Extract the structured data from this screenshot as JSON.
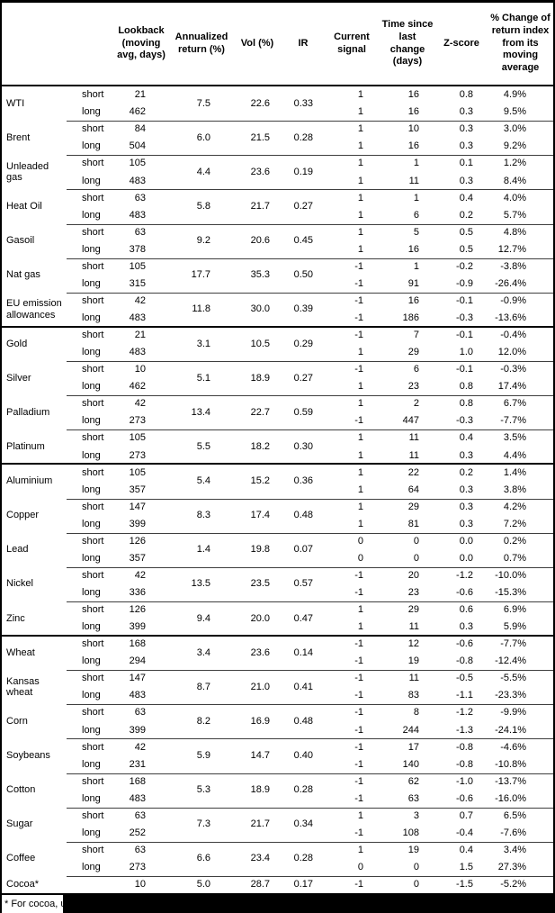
{
  "header": {
    "commodity": "",
    "position": "",
    "lookback": "Lookback (moving avg, days)",
    "annualized": "Annualized return (%)",
    "vol": "Vol (%)",
    "ir": "IR",
    "signal": "Current signal",
    "time": "Time since last change (days)",
    "zscore": "Z-score",
    "change": "% Change of return index from its moving average"
  },
  "sections": [
    {
      "name": "energy",
      "groups": [
        {
          "name": "WTI",
          "annualized": "7.5",
          "vol": "22.6",
          "ir": "0.33",
          "rows": [
            {
              "pos": "short",
              "lookback": "21",
              "signal": "1",
              "time": "16",
              "zscore": "0.8",
              "change": "4.9%"
            },
            {
              "pos": "long",
              "lookback": "462",
              "signal": "1",
              "time": "16",
              "zscore": "0.3",
              "change": "9.5%"
            }
          ]
        },
        {
          "name": "Brent",
          "annualized": "6.0",
          "vol": "21.5",
          "ir": "0.28",
          "rows": [
            {
              "pos": "short",
              "lookback": "84",
              "signal": "1",
              "time": "10",
              "zscore": "0.3",
              "change": "3.0%"
            },
            {
              "pos": "long",
              "lookback": "504",
              "signal": "1",
              "time": "16",
              "zscore": "0.3",
              "change": "9.2%"
            }
          ]
        },
        {
          "name": "Unleaded gas",
          "annualized": "4.4",
          "vol": "23.6",
          "ir": "0.19",
          "rows": [
            {
              "pos": "short",
              "lookback": "105",
              "signal": "1",
              "time": "1",
              "zscore": "0.1",
              "change": "1.2%"
            },
            {
              "pos": "long",
              "lookback": "483",
              "signal": "1",
              "time": "11",
              "zscore": "0.3",
              "change": "8.4%"
            }
          ]
        },
        {
          "name": "Heat Oil",
          "annualized": "5.8",
          "vol": "21.7",
          "ir": "0.27",
          "rows": [
            {
              "pos": "short",
              "lookback": "63",
              "signal": "1",
              "time": "1",
              "zscore": "0.4",
              "change": "4.0%"
            },
            {
              "pos": "long",
              "lookback": "483",
              "signal": "1",
              "time": "6",
              "zscore": "0.2",
              "change": "5.7%"
            }
          ]
        },
        {
          "name": "Gasoil",
          "annualized": "9.2",
          "vol": "20.6",
          "ir": "0.45",
          "rows": [
            {
              "pos": "short",
              "lookback": "63",
              "signal": "1",
              "time": "5",
              "zscore": "0.5",
              "change": "4.8%"
            },
            {
              "pos": "long",
              "lookback": "378",
              "signal": "1",
              "time": "16",
              "zscore": "0.5",
              "change": "12.7%"
            }
          ]
        },
        {
          "name": "Nat gas",
          "annualized": "17.7",
          "vol": "35.3",
          "ir": "0.50",
          "rows": [
            {
              "pos": "short",
              "lookback": "105",
              "signal": "-1",
              "time": "1",
              "zscore": "-0.2",
              "change": "-3.8%"
            },
            {
              "pos": "long",
              "lookback": "315",
              "signal": "-1",
              "time": "91",
              "zscore": "-0.9",
              "change": "-26.4%"
            }
          ]
        },
        {
          "name": "EU emission allowances",
          "annualized": "11.8",
          "vol": "30.0",
          "ir": "0.39",
          "rows": [
            {
              "pos": "short",
              "lookback": "42",
              "signal": "-1",
              "time": "16",
              "zscore": "-0.1",
              "change": "-0.9%"
            },
            {
              "pos": "long",
              "lookback": "483",
              "signal": "-1",
              "time": "186",
              "zscore": "-0.3",
              "change": "-13.6%"
            }
          ]
        }
      ]
    },
    {
      "name": "precious-metals",
      "groups": [
        {
          "name": "Gold",
          "annualized": "3.1",
          "vol": "10.5",
          "ir": "0.29",
          "rows": [
            {
              "pos": "short",
              "lookback": "21",
              "signal": "-1",
              "time": "7",
              "zscore": "-0.1",
              "change": "-0.4%"
            },
            {
              "pos": "long",
              "lookback": "483",
              "signal": "1",
              "time": "29",
              "zscore": "1.0",
              "change": "12.0%"
            }
          ]
        },
        {
          "name": "Silver",
          "annualized": "5.1",
          "vol": "18.9",
          "ir": "0.27",
          "rows": [
            {
              "pos": "short",
              "lookback": "10",
              "signal": "-1",
              "time": "6",
              "zscore": "-0.1",
              "change": "-0.3%"
            },
            {
              "pos": "long",
              "lookback": "462",
              "signal": "1",
              "time": "23",
              "zscore": "0.8",
              "change": "17.4%"
            }
          ]
        },
        {
          "name": "Palladium",
          "annualized": "13.4",
          "vol": "22.7",
          "ir": "0.59",
          "rows": [
            {
              "pos": "short",
              "lookback": "42",
              "signal": "1",
              "time": "2",
              "zscore": "0.8",
              "change": "6.7%"
            },
            {
              "pos": "long",
              "lookback": "273",
              "signal": "-1",
              "time": "447",
              "zscore": "-0.3",
              "change": "-7.7%"
            }
          ]
        },
        {
          "name": "Platinum",
          "annualized": "5.5",
          "vol": "18.2",
          "ir": "0.30",
          "rows": [
            {
              "pos": "short",
              "lookback": "105",
              "signal": "1",
              "time": "11",
              "zscore": "0.4",
              "change": "3.5%"
            },
            {
              "pos": "long",
              "lookback": "273",
              "signal": "1",
              "time": "11",
              "zscore": "0.3",
              "change": "4.4%"
            }
          ]
        }
      ]
    },
    {
      "name": "base-metals",
      "groups": [
        {
          "name": "Aluminium",
          "annualized": "5.4",
          "vol": "15.2",
          "ir": "0.36",
          "rows": [
            {
              "pos": "short",
              "lookback": "105",
              "signal": "1",
              "time": "22",
              "zscore": "0.2",
              "change": "1.4%"
            },
            {
              "pos": "long",
              "lookback": "357",
              "signal": "1",
              "time": "64",
              "zscore": "0.3",
              "change": "3.8%"
            }
          ]
        },
        {
          "name": "Copper",
          "annualized": "8.3",
          "vol": "17.4",
          "ir": "0.48",
          "rows": [
            {
              "pos": "short",
              "lookback": "147",
              "signal": "1",
              "time": "29",
              "zscore": "0.3",
              "change": "4.2%"
            },
            {
              "pos": "long",
              "lookback": "399",
              "signal": "1",
              "time": "81",
              "zscore": "0.3",
              "change": "7.2%"
            }
          ]
        },
        {
          "name": "Lead",
          "annualized": "1.4",
          "vol": "19.8",
          "ir": "0.07",
          "rows": [
            {
              "pos": "short",
              "lookback": "126",
              "signal": "0",
              "time": "0",
              "zscore": "0.0",
              "change": "0.2%"
            },
            {
              "pos": "long",
              "lookback": "357",
              "signal": "0",
              "time": "0",
              "zscore": "0.0",
              "change": "0.7%"
            }
          ]
        },
        {
          "name": "Nickel",
          "annualized": "13.5",
          "vol": "23.5",
          "ir": "0.57",
          "rows": [
            {
              "pos": "short",
              "lookback": "42",
              "signal": "-1",
              "time": "20",
              "zscore": "-1.2",
              "change": "-10.0%"
            },
            {
              "pos": "long",
              "lookback": "336",
              "signal": "-1",
              "time": "23",
              "zscore": "-0.6",
              "change": "-15.3%"
            }
          ]
        },
        {
          "name": "Zinc",
          "annualized": "9.4",
          "vol": "20.0",
          "ir": "0.47",
          "rows": [
            {
              "pos": "short",
              "lookback": "126",
              "signal": "1",
              "time": "29",
              "zscore": "0.6",
              "change": "6.9%"
            },
            {
              "pos": "long",
              "lookback": "399",
              "signal": "1",
              "time": "11",
              "zscore": "0.3",
              "change": "5.9%"
            }
          ]
        }
      ]
    },
    {
      "name": "agriculture",
      "groups": [
        {
          "name": "Wheat",
          "annualized": "3.4",
          "vol": "23.6",
          "ir": "0.14",
          "rows": [
            {
              "pos": "short",
              "lookback": "168",
              "signal": "-1",
              "time": "12",
              "zscore": "-0.6",
              "change": "-7.7%"
            },
            {
              "pos": "long",
              "lookback": "294",
              "signal": "-1",
              "time": "19",
              "zscore": "-0.8",
              "change": "-12.4%"
            }
          ]
        },
        {
          "name": "Kansas wheat",
          "annualized": "8.7",
          "vol": "21.0",
          "ir": "0.41",
          "rows": [
            {
              "pos": "short",
              "lookback": "147",
              "signal": "-1",
              "time": "11",
              "zscore": "-0.5",
              "change": "-5.5%"
            },
            {
              "pos": "long",
              "lookback": "483",
              "signal": "-1",
              "time": "83",
              "zscore": "-1.1",
              "change": "-23.3%"
            }
          ]
        },
        {
          "name": "Corn",
          "annualized": "8.2",
          "vol": "16.9",
          "ir": "0.48",
          "rows": [
            {
              "pos": "short",
              "lookback": "63",
              "signal": "-1",
              "time": "8",
              "zscore": "-1.2",
              "change": "-9.9%"
            },
            {
              "pos": "long",
              "lookback": "399",
              "signal": "-1",
              "time": "244",
              "zscore": "-1.3",
              "change": "-24.1%"
            }
          ]
        },
        {
          "name": "Soybeans",
          "annualized": "5.9",
          "vol": "14.7",
          "ir": "0.40",
          "rows": [
            {
              "pos": "short",
              "lookback": "42",
              "signal": "-1",
              "time": "17",
              "zscore": "-0.8",
              "change": "-4.6%"
            },
            {
              "pos": "long",
              "lookback": "231",
              "signal": "-1",
              "time": "140",
              "zscore": "-0.8",
              "change": "-10.8%"
            }
          ]
        },
        {
          "name": "Cotton",
          "annualized": "5.3",
          "vol": "18.9",
          "ir": "0.28",
          "rows": [
            {
              "pos": "short",
              "lookback": "168",
              "signal": "-1",
              "time": "62",
              "zscore": "-1.0",
              "change": "-13.7%"
            },
            {
              "pos": "long",
              "lookback": "483",
              "signal": "-1",
              "time": "63",
              "zscore": "-0.6",
              "change": "-16.0%"
            }
          ]
        },
        {
          "name": "Sugar",
          "annualized": "7.3",
          "vol": "21.7",
          "ir": "0.34",
          "rows": [
            {
              "pos": "short",
              "lookback": "63",
              "signal": "1",
              "time": "3",
              "zscore": "0.7",
              "change": "6.5%"
            },
            {
              "pos": "long",
              "lookback": "252",
              "signal": "-1",
              "time": "108",
              "zscore": "-0.4",
              "change": "-7.6%"
            }
          ]
        },
        {
          "name": "Coffee",
          "annualized": "6.6",
          "vol": "23.4",
          "ir": "0.28",
          "rows": [
            {
              "pos": "short",
              "lookback": "63",
              "signal": "1",
              "time": "19",
              "zscore": "0.4",
              "change": "3.4%"
            },
            {
              "pos": "long",
              "lookback": "273",
              "signal": "0",
              "time": "0",
              "zscore": "1.5",
              "change": "27.3%"
            }
          ]
        },
        {
          "name": "Cocoa*",
          "annualized": "5.0",
          "vol": "28.7",
          "ir": "0.17",
          "rows": [
            {
              "pos": "",
              "lookback": "10",
              "signal": "-1",
              "time": "0",
              "zscore": "-1.5",
              "change": "-5.2%"
            }
          ]
        }
      ]
    }
  ],
  "footnote": "* For cocoa, uses c",
  "colors": {
    "text": "#000000",
    "background": "#ffffff",
    "rule_thin": "#3f3f3f",
    "rule_thick": "#000000",
    "redaction_bar": "#000000"
  }
}
